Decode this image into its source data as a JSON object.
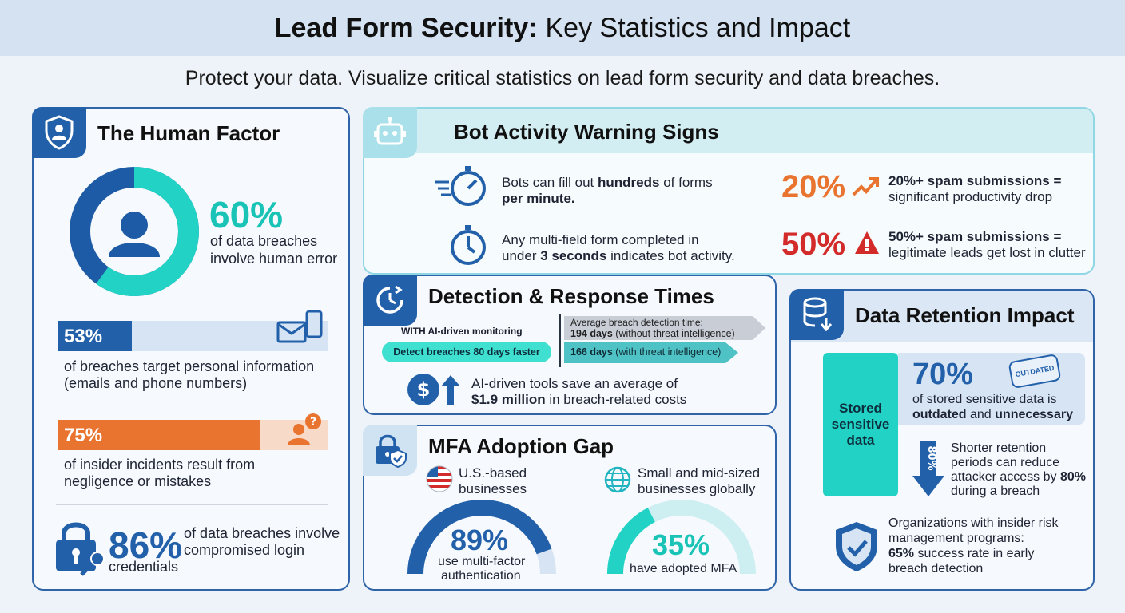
{
  "title": {
    "bold": "Lead Form Security:",
    "rest": "Key Statistics and Impact"
  },
  "subtitle": "Protect your data. Visualize critical statistics on lead form security and data breaches.",
  "human": {
    "title": "The Human Factor",
    "donut": {
      "pct": "60%",
      "desc1": "of data breaches",
      "desc2": "involve human error",
      "fraction": 0.6
    },
    "bar1": {
      "pct": "53%",
      "fraction": 0.53,
      "desc1": "of breaches target personal information",
      "desc2": "(emails and phone numbers)"
    },
    "bar2": {
      "pct": "75%",
      "fraction": 0.75,
      "desc1": "of insider incidents result from",
      "desc2": "negligence or mistakes"
    },
    "cred": {
      "pct": "86%",
      "desc1": "of data breaches involve",
      "desc2": "compromised login",
      "desc3": "credentials"
    }
  },
  "bot": {
    "title": "Bot Activity Warning Signs",
    "item1": {
      "pre": "Bots can fill out ",
      "bold": "hundreds",
      "post": " of forms",
      "line2": "per minute."
    },
    "item2": {
      "line1": "Any multi-field form completed in",
      "pre": "under ",
      "bold": "3 seconds",
      "post": " indicates bot activity."
    },
    "stat1": {
      "pct": "20%",
      "line1": "20%+ spam submissions =",
      "line2": "significant productivity drop"
    },
    "stat2": {
      "pct": "50%",
      "line1": "50%+ spam submissions =",
      "line2": "legitimate leads get lost in clutter"
    }
  },
  "detect": {
    "title": "Detection & Response Times",
    "with_label": "WITH AI-driven monitoring",
    "faster": "Detect breaches 80 days faster",
    "avg_label": "Average breach detection time:",
    "days1_bold": "194 days",
    "days1_rest": " (without threat intelligence)",
    "days2_bold": "166 days",
    "days2_rest": " (with threat intelligence)",
    "save1": "AI-driven tools save an average of",
    "save_bold": "$1.9 million",
    "save_rest": " in breach-related costs"
  },
  "mfa": {
    "title": "MFA Adoption Gap",
    "us": {
      "label1": "U.S.-based",
      "label2": "businesses",
      "pct": "89%",
      "desc1": "use multi-factor",
      "desc2": "authentication",
      "fraction": 0.89
    },
    "smb": {
      "label1": "Small and mid-sized",
      "label2": "businesses globally",
      "pct": "35%",
      "desc1": "have adopted MFA",
      "fraction": 0.35
    }
  },
  "retention": {
    "title": "Data Retention Impact",
    "block_label": "Stored sensitive data",
    "pct": "70%",
    "stamp": "OUTDATED",
    "desc1": "of stored sensitive data is",
    "desc_b1": "outdated",
    "desc_mid": " and ",
    "desc_b2": "unnecessary",
    "arrow_pct": "80%",
    "shorter1": "Shorter retention",
    "shorter2": "periods can reduce",
    "shorter3_pre": "attacker access by ",
    "shorter3_bold": "80%",
    "shorter4": "during a breach",
    "org1": "Organizations with insider risk",
    "org2": "management programs:",
    "org3_bold": "65%",
    "org3_rest": " success rate in early",
    "org4": "breach detection"
  },
  "colors": {
    "navy": "#2360aa",
    "teal": "#22d3c5",
    "orange": "#e8742f",
    "red": "#d32a2a",
    "light_blue": "#d6e4f4"
  }
}
